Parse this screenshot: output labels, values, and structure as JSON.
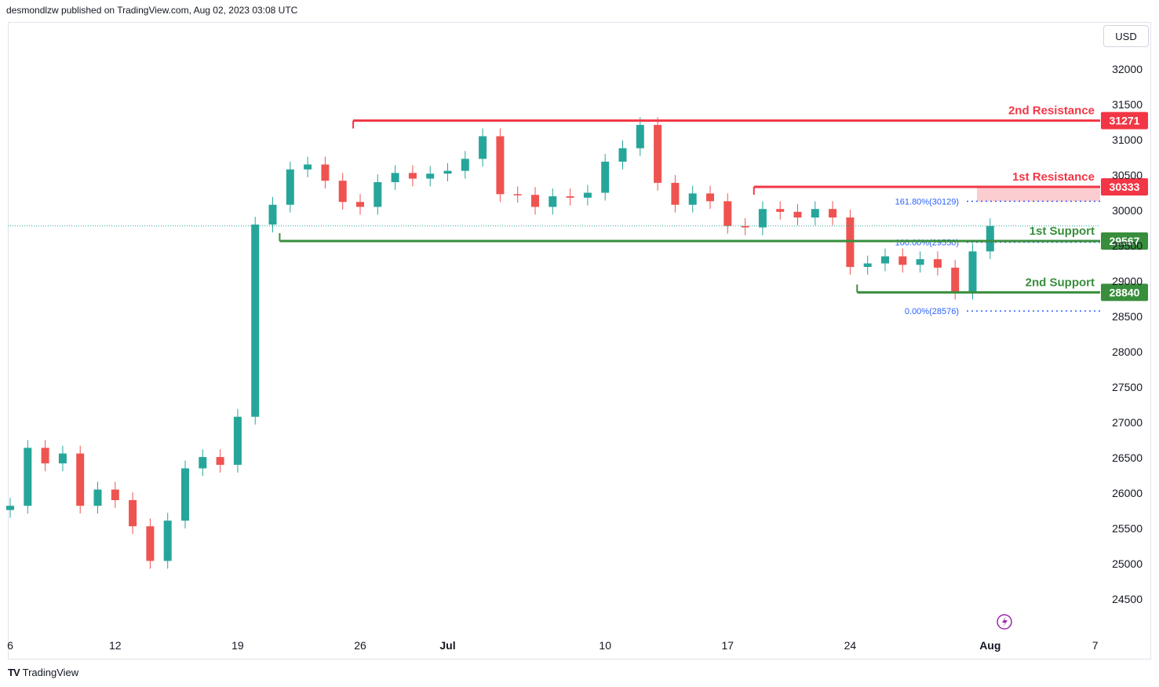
{
  "header": {
    "publisher": "desmondlzw published on TradingView.com, Aug 02, 2023 03:08 UTC"
  },
  "currency_button": "USD",
  "footer": {
    "logo": "TradingView"
  },
  "colors": {
    "up": "#26a69a",
    "down": "#ef5350",
    "resistance": "#f23645",
    "support": "#388e3c",
    "fib": "#2962ff",
    "alert": "#9c27b0"
  },
  "chart_data": {
    "type": "candlestick",
    "y_ticks": [
      32000,
      31500,
      31000,
      30500,
      30000,
      29500,
      29000,
      28500,
      28000,
      27500,
      27000,
      26500,
      26000,
      25500,
      25000,
      24500
    ],
    "ylim": [
      24100,
      32500
    ],
    "x_ticks": [
      {
        "label": "6",
        "day": 0,
        "bold": false
      },
      {
        "label": "12",
        "day": 6,
        "bold": false
      },
      {
        "label": "19",
        "day": 13,
        "bold": false
      },
      {
        "label": "26",
        "day": 20,
        "bold": false
      },
      {
        "label": "Jul",
        "day": 25,
        "bold": true
      },
      {
        "label": "10",
        "day": 34,
        "bold": false
      },
      {
        "label": "17",
        "day": 41,
        "bold": false
      },
      {
        "label": "24",
        "day": 48,
        "bold": false
      },
      {
        "label": "Aug",
        "day": 56,
        "bold": true
      },
      {
        "label": "7",
        "day": 62,
        "bold": false
      }
    ],
    "close": [
      25820,
      26640,
      26420,
      26560,
      25820,
      26050,
      25900,
      25530,
      25040,
      25610,
      26350,
      26510,
      26400,
      27080,
      29800,
      30080,
      30580,
      30650,
      30420,
      30120,
      30050,
      30400,
      30530,
      30450,
      30520,
      30560,
      30730,
      31050,
      30230,
      30220,
      30050,
      30200,
      30180,
      30250,
      30690,
      30880,
      31210,
      30390,
      30080,
      30240,
      30130,
      29780,
      29760,
      30020,
      29980,
      29900,
      30020,
      29900,
      29200,
      29250,
      29350,
      29230,
      29310,
      29190,
      28850,
      29420,
      29780
    ],
    "levels": [
      {
        "name": "2nd Resistance",
        "value": 31271,
        "kind": "resistance",
        "start_day": 19.6
      },
      {
        "name": "1st Resistance",
        "value": 30333,
        "kind": "resistance",
        "start_day": 42.5
      },
      {
        "name": "1st Support",
        "value": 29567,
        "kind": "support",
        "start_day": 15.4
      },
      {
        "name": "2nd Support",
        "value": 28840,
        "kind": "support",
        "start_day": 48.4
      }
    ],
    "fib": [
      {
        "label": "161.80%(30129)",
        "value": 30129
      },
      {
        "label": "100.00%(29550)",
        "value": 29550
      },
      {
        "label": "0.00%(28576)",
        "value": 28576
      }
    ],
    "last_price": 29780
  }
}
